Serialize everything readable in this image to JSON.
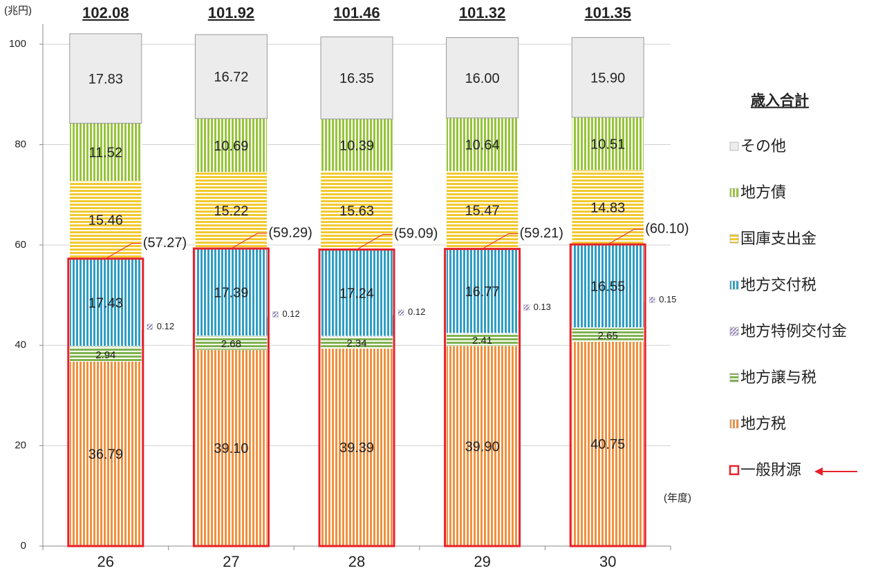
{
  "chart_data": {
    "type": "stacked_bar",
    "y_unit_label": "(兆円)",
    "x_unit_label": "(年度)",
    "legend_title": "歳入合計",
    "categories": [
      "26",
      "27",
      "28",
      "29",
      "30"
    ],
    "series": [
      {
        "name": "地方税",
        "color": "#f0913f",
        "hatch": "vertical",
        "values": [
          36.79,
          39.1,
          39.39,
          39.9,
          40.75
        ],
        "value_labels": [
          "36.79",
          "39.10",
          "39.39",
          "39.90",
          "40.75"
        ]
      },
      {
        "name": "地方譲与税",
        "color": "#7fb24e",
        "hatch": "horizontal",
        "values": [
          2.94,
          2.68,
          2.34,
          2.41,
          2.65
        ],
        "value_labels": [
          "2.94",
          "2.68",
          "2.34",
          "2.41",
          "2.65"
        ]
      },
      {
        "name": "地方特例交付金",
        "color": "#8f7fb8",
        "hatch": "diagonal",
        "values": [
          0.12,
          0.12,
          0.12,
          0.13,
          0.15
        ],
        "value_labels": [
          "0.12",
          "0.12",
          "0.12",
          "0.13",
          "0.15"
        ]
      },
      {
        "name": "地方交付税",
        "color": "#2f9ec4",
        "hatch": "vertical",
        "values": [
          17.43,
          17.39,
          17.24,
          16.77,
          16.55
        ],
        "value_labels": [
          "17.43",
          "17.39",
          "17.24",
          "16.77",
          "16.55"
        ]
      },
      {
        "name": "国庫支出金",
        "color": "#f2c92e",
        "hatch": "horizontal",
        "values": [
          15.46,
          15.22,
          15.63,
          15.47,
          14.83
        ],
        "value_labels": [
          "15.46",
          "15.22",
          "15.63",
          "15.47",
          "14.83"
        ]
      },
      {
        "name": "地方債",
        "color": "#96c43a",
        "hatch": "vertical",
        "values": [
          11.52,
          10.69,
          10.39,
          10.64,
          10.51
        ],
        "value_labels": [
          "11.52",
          "10.69",
          "10.39",
          "10.64",
          "10.51"
        ]
      },
      {
        "name": "その他",
        "color": "#ececec",
        "hatch": "none",
        "values": [
          17.83,
          16.72,
          16.35,
          16.0,
          15.9
        ],
        "value_labels": [
          "17.83",
          "16.72",
          "16.35",
          "16.00",
          "15.90"
        ]
      }
    ],
    "totals": {
      "values": [
        102.08,
        101.92,
        101.46,
        101.32,
        101.35
      ]
    },
    "general_revenue": {
      "name": "一般財源",
      "color": "#e8202a",
      "values": [
        57.27,
        59.29,
        59.09,
        59.21,
        60.1
      ],
      "value_labels": [
        "(57.27)",
        "(59.29)",
        "(59.09)",
        "(59.21)",
        "(60.10)"
      ]
    },
    "ylim": [
      0,
      104
    ],
    "yticks": [
      0,
      20,
      40,
      60,
      80,
      100
    ],
    "grid": true
  }
}
